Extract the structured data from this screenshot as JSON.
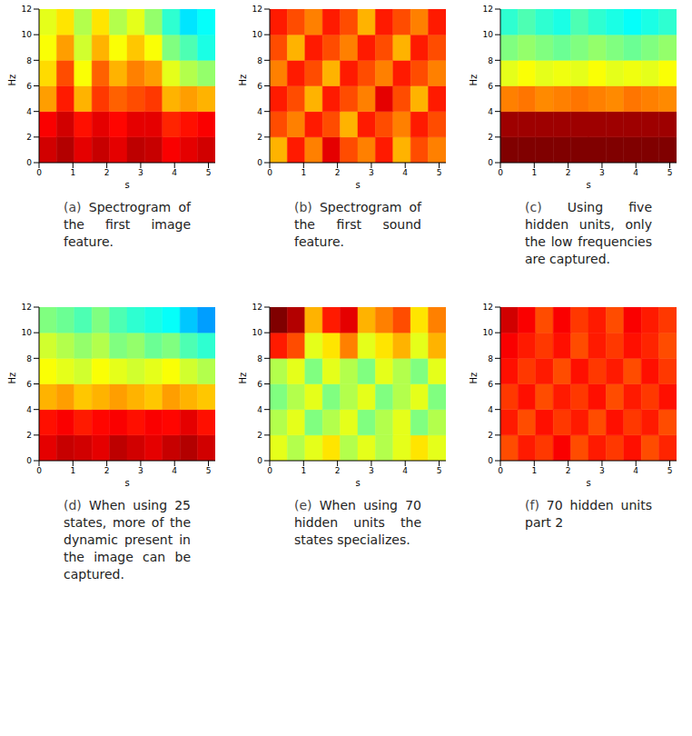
{
  "chart_data": [
    {
      "type": "heatmap",
      "label": "(a)",
      "caption": "Spectrogram of the first image feature.",
      "x_label": "s",
      "y_label": "Hz",
      "xlim": [
        0,
        5.2
      ],
      "xticks": [
        0,
        1,
        2,
        3,
        4,
        5
      ],
      "ylim": [
        0,
        12
      ],
      "yticks": [
        0,
        2,
        4,
        6,
        8,
        10,
        12
      ],
      "zlim": [
        0,
        1
      ],
      "x_bins": [
        0,
        0.52,
        1.04,
        1.56,
        2.08,
        2.6,
        3.12,
        3.64,
        4.16,
        4.68,
        5.2
      ],
      "y_bins": [
        0,
        2,
        4,
        6,
        8,
        10,
        12
      ],
      "cells": [
        [
          0.92,
          0.95,
          0.9,
          0.93,
          0.9,
          0.94,
          0.93,
          0.88,
          0.9,
          0.92
        ],
        [
          0.88,
          0.92,
          0.86,
          0.9,
          0.87,
          0.9,
          0.9,
          0.84,
          0.86,
          0.88
        ],
        [
          0.72,
          0.85,
          0.7,
          0.82,
          0.78,
          0.8,
          0.82,
          0.7,
          0.72,
          0.7
        ],
        [
          0.66,
          0.8,
          0.62,
          0.78,
          0.7,
          0.75,
          0.72,
          0.6,
          0.55,
          0.52
        ],
        [
          0.62,
          0.72,
          0.58,
          0.7,
          0.62,
          0.68,
          0.62,
          0.5,
          0.45,
          0.4
        ],
        [
          0.6,
          0.65,
          0.55,
          0.65,
          0.55,
          0.6,
          0.52,
          0.42,
          0.35,
          0.38
        ]
      ]
    },
    {
      "type": "heatmap",
      "label": "(b)",
      "caption": "Spectrogram of the first sound feature.",
      "x_label": "s",
      "y_label": "Hz",
      "xlim": [
        0,
        5.2
      ],
      "xticks": [
        0,
        1,
        2,
        3,
        4,
        5
      ],
      "ylim": [
        0,
        12
      ],
      "yticks": [
        0,
        2,
        4,
        6,
        8,
        10,
        12
      ],
      "zlim": [
        0,
        1
      ],
      "x_bins": [
        0,
        0.52,
        1.04,
        1.56,
        2.08,
        2.6,
        3.12,
        3.64,
        4.16,
        4.68,
        5.2
      ],
      "y_bins": [
        0,
        2,
        4,
        6,
        8,
        10,
        12
      ],
      "cells": [
        [
          0.7,
          0.85,
          0.75,
          0.9,
          0.8,
          0.75,
          0.85,
          0.7,
          0.8,
          0.75
        ],
        [
          0.8,
          0.75,
          0.85,
          0.8,
          0.7,
          0.85,
          0.8,
          0.75,
          0.85,
          0.8
        ],
        [
          0.85,
          0.8,
          0.7,
          0.85,
          0.8,
          0.75,
          0.9,
          0.8,
          0.7,
          0.85
        ],
        [
          0.75,
          0.85,
          0.8,
          0.7,
          0.85,
          0.8,
          0.75,
          0.85,
          0.8,
          0.75
        ],
        [
          0.8,
          0.7,
          0.85,
          0.8,
          0.75,
          0.85,
          0.8,
          0.7,
          0.85,
          0.8
        ],
        [
          0.85,
          0.8,
          0.75,
          0.85,
          0.8,
          0.7,
          0.85,
          0.8,
          0.75,
          0.85
        ]
      ]
    },
    {
      "type": "heatmap",
      "label": "(c)",
      "caption": "Using five hidden units, only the low frequencies are captured.",
      "x_label": "s",
      "y_label": "Hz",
      "xlim": [
        0,
        5.2
      ],
      "xticks": [
        0,
        1,
        2,
        3,
        4,
        5
      ],
      "ylim": [
        0,
        12
      ],
      "yticks": [
        0,
        2,
        4,
        6,
        8,
        10,
        12
      ],
      "zlim": [
        0,
        1
      ],
      "x_bins": [
        0,
        0.52,
        1.04,
        1.56,
        2.08,
        2.6,
        3.12,
        3.64,
        4.16,
        4.68,
        5.2
      ],
      "y_bins": [
        0,
        2,
        4,
        6,
        8,
        10,
        12
      ],
      "cells": [
        [
          1,
          1,
          1,
          1,
          1,
          1,
          1,
          1,
          1,
          1
        ],
        [
          0.97,
          0.97,
          0.97,
          0.97,
          0.97,
          0.97,
          0.97,
          0.97,
          0.97,
          0.97
        ],
        [
          0.75,
          0.76,
          0.74,
          0.75,
          0.76,
          0.75,
          0.74,
          0.76,
          0.75,
          0.74
        ],
        [
          0.6,
          0.62,
          0.6,
          0.61,
          0.6,
          0.62,
          0.6,
          0.61,
          0.6,
          0.62
        ],
        [
          0.5,
          0.52,
          0.5,
          0.48,
          0.5,
          0.52,
          0.5,
          0.48,
          0.5,
          0.52
        ],
        [
          0.42,
          0.45,
          0.42,
          0.4,
          0.45,
          0.42,
          0.4,
          0.38,
          0.4,
          0.42
        ]
      ]
    },
    {
      "type": "heatmap",
      "label": "(d)",
      "caption": "When using 25 states, more of the dynamic present in the image can be captured.",
      "x_label": "s",
      "y_label": "Hz",
      "xlim": [
        0,
        5.2
      ],
      "xticks": [
        0,
        1,
        2,
        3,
        4,
        5
      ],
      "ylim": [
        0,
        12
      ],
      "yticks": [
        0,
        2,
        4,
        6,
        8,
        10,
        12
      ],
      "zlim": [
        0,
        1
      ],
      "x_bins": [
        0,
        0.52,
        1.04,
        1.56,
        2.08,
        2.6,
        3.12,
        3.64,
        4.16,
        4.68,
        5.2
      ],
      "y_bins": [
        0,
        2,
        4,
        6,
        8,
        10,
        12
      ],
      "cells": [
        [
          0.9,
          0.93,
          0.92,
          0.9,
          0.94,
          0.92,
          0.9,
          0.93,
          0.95,
          0.92
        ],
        [
          0.86,
          0.88,
          0.85,
          0.87,
          0.88,
          0.86,
          0.88,
          0.87,
          0.9,
          0.86
        ],
        [
          0.7,
          0.72,
          0.68,
          0.7,
          0.72,
          0.7,
          0.68,
          0.72,
          0.7,
          0.68
        ],
        [
          0.62,
          0.6,
          0.58,
          0.62,
          0.6,
          0.58,
          0.6,
          0.62,
          0.58,
          0.55
        ],
        [
          0.58,
          0.55,
          0.52,
          0.55,
          0.5,
          0.52,
          0.48,
          0.5,
          0.45,
          0.42
        ],
        [
          0.5,
          0.48,
          0.45,
          0.5,
          0.45,
          0.42,
          0.4,
          0.38,
          0.32,
          0.28
        ]
      ]
    },
    {
      "type": "heatmap",
      "label": "(e)",
      "caption": "When using 70 hidden units the states specializes.",
      "x_label": "s",
      "y_label": "Hz",
      "xlim": [
        0,
        5.2
      ],
      "xticks": [
        0,
        1,
        2,
        3,
        4,
        5
      ],
      "ylim": [
        0,
        12
      ],
      "yticks": [
        0,
        2,
        4,
        6,
        8,
        10,
        12
      ],
      "zlim": [
        0,
        1
      ],
      "x_bins": [
        0,
        0.52,
        1.04,
        1.56,
        2.08,
        2.6,
        3.12,
        3.64,
        4.16,
        4.68,
        5.2
      ],
      "y_bins": [
        0,
        2,
        4,
        6,
        8,
        10,
        12
      ],
      "cells": [
        [
          0.6,
          0.55,
          0.6,
          0.65,
          0.55,
          0.6,
          0.55,
          0.6,
          0.65,
          0.6
        ],
        [
          0.55,
          0.6,
          0.5,
          0.55,
          0.6,
          0.5,
          0.55,
          0.6,
          0.5,
          0.55
        ],
        [
          0.5,
          0.55,
          0.6,
          0.5,
          0.55,
          0.6,
          0.5,
          0.55,
          0.6,
          0.5
        ],
        [
          0.55,
          0.6,
          0.5,
          0.6,
          0.55,
          0.5,
          0.6,
          0.55,
          0.5,
          0.6
        ],
        [
          0.85,
          0.8,
          0.6,
          0.65,
          0.75,
          0.6,
          0.65,
          0.7,
          0.6,
          0.7
        ],
        [
          1,
          0.95,
          0.7,
          0.85,
          0.9,
          0.7,
          0.75,
          0.8,
          0.65,
          0.75
        ]
      ]
    },
    {
      "type": "heatmap",
      "label": "(f)",
      "caption": "70 hidden units part 2",
      "x_label": "s",
      "y_label": "Hz",
      "xlim": [
        0,
        5.2
      ],
      "xticks": [
        0,
        1,
        2,
        3,
        4,
        5
      ],
      "ylim": [
        0,
        12
      ],
      "yticks": [
        0,
        2,
        4,
        6,
        8,
        10,
        12
      ],
      "zlim": [
        0,
        1
      ],
      "x_bins": [
        0,
        0.52,
        1.04,
        1.56,
        2.08,
        2.6,
        3.12,
        3.64,
        4.16,
        4.68,
        5.2
      ],
      "y_bins": [
        0,
        2,
        4,
        6,
        8,
        10,
        12
      ],
      "cells": [
        [
          0.8,
          0.85,
          0.82,
          0.88,
          0.8,
          0.85,
          0.82,
          0.86,
          0.8,
          0.84
        ],
        [
          0.85,
          0.8,
          0.86,
          0.82,
          0.85,
          0.8,
          0.86,
          0.82,
          0.85,
          0.8
        ],
        [
          0.82,
          0.86,
          0.8,
          0.85,
          0.82,
          0.86,
          0.8,
          0.85,
          0.82,
          0.86
        ],
        [
          0.86,
          0.82,
          0.85,
          0.8,
          0.86,
          0.82,
          0.85,
          0.8,
          0.86,
          0.82
        ],
        [
          0.88,
          0.85,
          0.82,
          0.86,
          0.8,
          0.85,
          0.82,
          0.86,
          0.84,
          0.8
        ],
        [
          0.92,
          0.88,
          0.8,
          0.88,
          0.82,
          0.85,
          0.8,
          0.88,
          0.85,
          0.82
        ]
      ]
    }
  ]
}
